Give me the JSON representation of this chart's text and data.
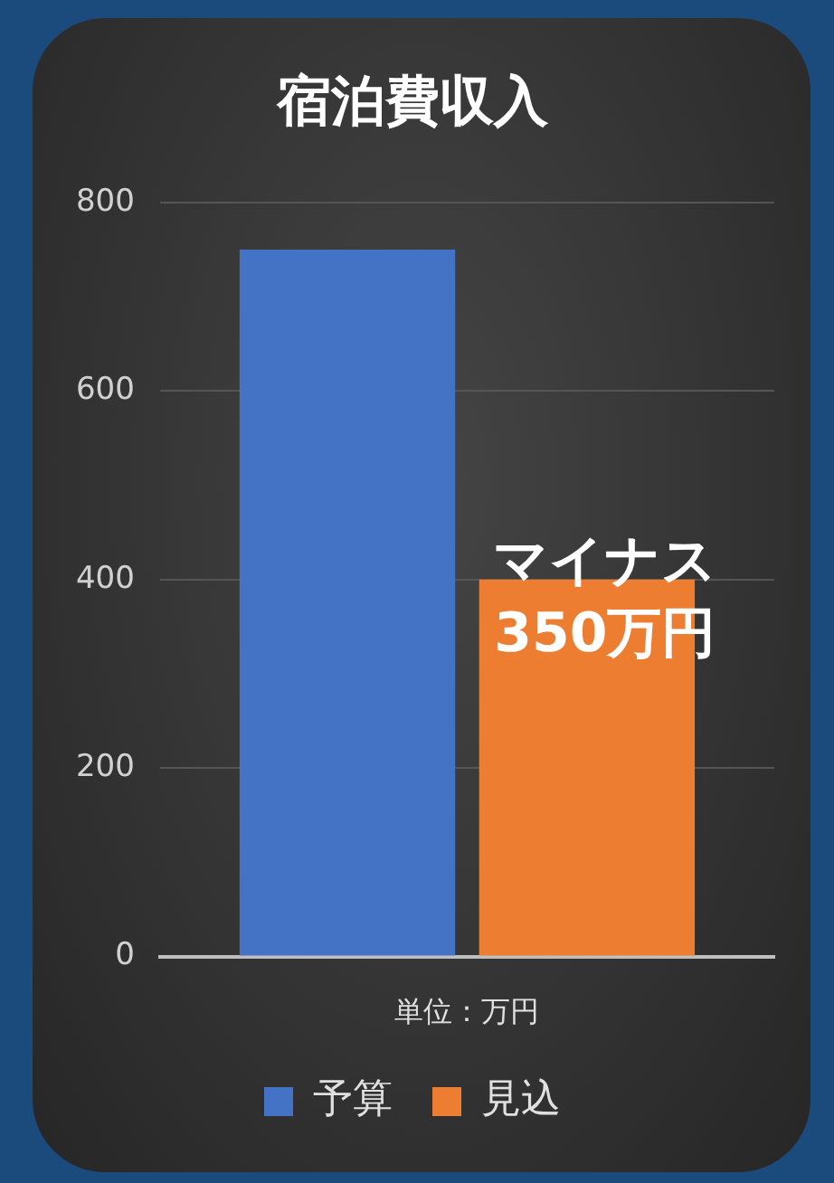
{
  "chart_data": {
    "type": "bar",
    "title": "宿泊費収入",
    "xlabel": "単位：万円",
    "categories": [
      null
    ],
    "series": [
      {
        "name": "予算",
        "color": "#4472c4",
        "values": [
          750
        ]
      },
      {
        "name": "見込",
        "color": "#ed7d31",
        "values": [
          400
        ]
      }
    ],
    "ylim": [
      0,
      800
    ],
    "yticks": [
      0,
      200,
      400,
      600,
      800
    ],
    "grid": "y",
    "legend": "bottom",
    "annotations": [
      "マイナス\n350万円"
    ]
  }
}
